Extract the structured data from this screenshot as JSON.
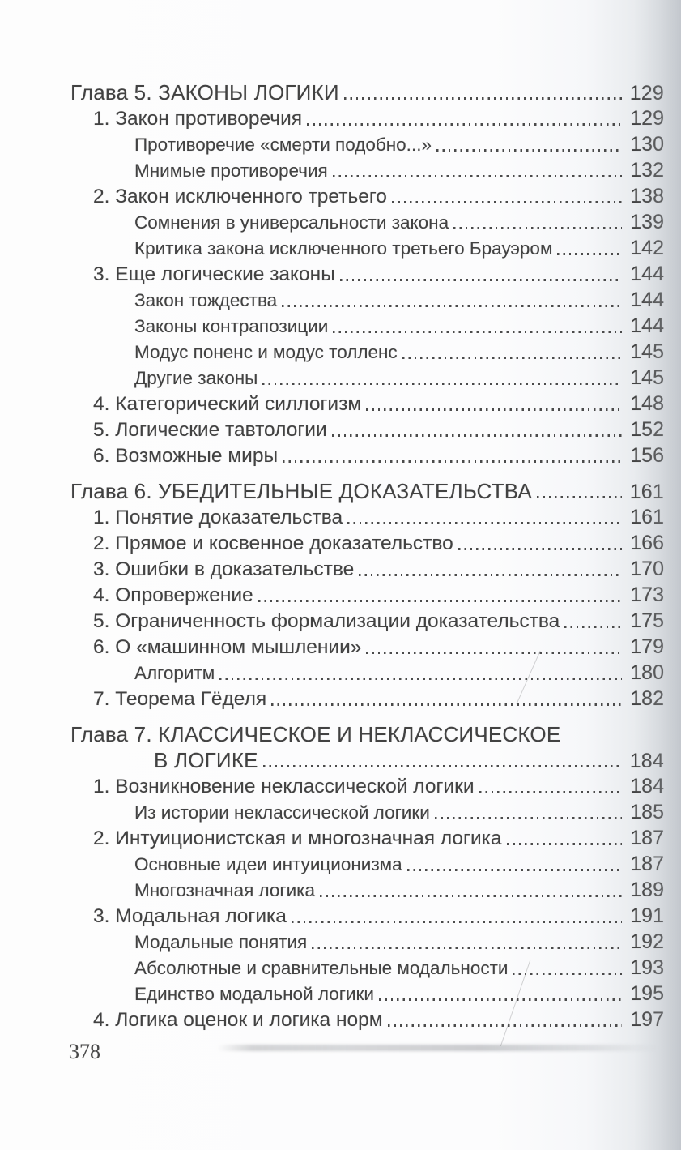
{
  "colors": {
    "ink": "#424242",
    "paper": "#fcfcfd",
    "page_edge_shadow": "#d7dade"
  },
  "footer": {
    "page_number": "378"
  },
  "toc": {
    "entries": [
      {
        "level": "chapter",
        "label": "Глава 5. ЗАКОНЫ ЛОГИКИ",
        "page": "129"
      },
      {
        "level": "section",
        "label": "1. Закон противоречия",
        "page": "129"
      },
      {
        "level": "sub",
        "label": "Противоречие «смерти подобно...»",
        "page": "130"
      },
      {
        "level": "sub",
        "label": "Мнимые противоречия",
        "page": "132"
      },
      {
        "level": "section",
        "label": "2. Закон исключенного третьего",
        "page": "138"
      },
      {
        "level": "sub",
        "label": "Сомнения в универсальности закона",
        "page": "139"
      },
      {
        "level": "sub",
        "label": "Критика закона исключенного третьего Брауэром",
        "page": "142"
      },
      {
        "level": "section",
        "label": "3. Еще логические законы",
        "page": "144"
      },
      {
        "level": "sub",
        "label": "Закон тождества",
        "page": "144"
      },
      {
        "level": "sub",
        "label": "Законы контрапозиции",
        "page": "144"
      },
      {
        "level": "sub",
        "label": "Модус поненс и модус толленс",
        "page": "145"
      },
      {
        "level": "sub",
        "label": "Другие законы",
        "page": "145"
      },
      {
        "level": "section",
        "label": "4. Категорический силлогизм",
        "page": "148"
      },
      {
        "level": "section",
        "label": "5. Логические тавтологии",
        "page": "152"
      },
      {
        "level": "section",
        "label": "6. Возможные миры",
        "page": "156"
      },
      {
        "level": "chapter",
        "label": "Глава 6. УБЕДИТЕЛЬНЫЕ ДОКАЗАТЕЛЬСТВА",
        "page": "161"
      },
      {
        "level": "section",
        "label": "1. Понятие доказательства",
        "page": "161"
      },
      {
        "level": "section",
        "label": "2. Прямое и косвенное доказательство",
        "page": "166"
      },
      {
        "level": "section",
        "label": "3. Ошибки в доказательстве",
        "page": "170"
      },
      {
        "level": "section",
        "label": "4. Опровержение",
        "page": "173"
      },
      {
        "level": "section",
        "label": "5. Ограниченность формализации доказательства",
        "page": "175"
      },
      {
        "level": "section",
        "label": "6. О «машинном мышлении»",
        "page": "179"
      },
      {
        "level": "sub",
        "label": "Алгоритм",
        "page": "180"
      },
      {
        "level": "section",
        "label": "7. Теорема Гёделя",
        "page": "182"
      },
      {
        "level": "chapter",
        "label": "Глава 7. КЛАССИЧЕСКОЕ И НЕКЛАССИЧЕСКОЕ",
        "page": null
      },
      {
        "level": "chapter_cont",
        "label": "В ЛОГИКЕ",
        "page": "184"
      },
      {
        "level": "section",
        "label": "1. Возникновение неклассической логики",
        "page": "184"
      },
      {
        "level": "sub",
        "label": "Из истории неклассической логики",
        "page": "185"
      },
      {
        "level": "section",
        "label": "2. Интуиционистская и многозначная логика",
        "page": "187"
      },
      {
        "level": "sub",
        "label": "Основные идеи интуиционизма",
        "page": "187"
      },
      {
        "level": "sub",
        "label": "Многозначная логика",
        "page": "189"
      },
      {
        "level": "section",
        "label": "3. Модальная логика",
        "page": "191"
      },
      {
        "level": "sub",
        "label": "Модальные понятия",
        "page": "192"
      },
      {
        "level": "sub",
        "label": "Абсолютные и сравнительные модальности",
        "page": "193"
      },
      {
        "level": "sub",
        "label": "Единство модальной логики",
        "page": "195"
      },
      {
        "level": "section",
        "label": "4. Логика оценок и логика норм",
        "page": "197"
      }
    ]
  }
}
